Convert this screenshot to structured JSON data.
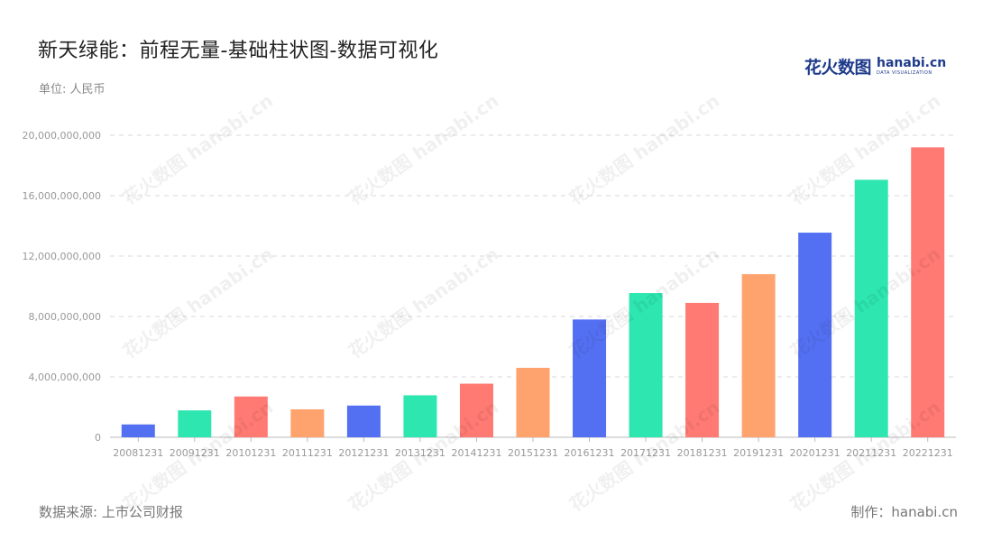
{
  "header": {
    "title": "新天绿能：前程无量-基础柱状图-数据可视化",
    "unit": "单位: 人民币"
  },
  "logo": {
    "cn": "花火数图",
    "en": "hanabi.cn",
    "sub": "DATA VISUALIZATION"
  },
  "footer": {
    "source": "数据来源: 上市公司财报",
    "maker": "制作：hanabi.cn"
  },
  "colors": {
    "palette": [
      "#5470f2",
      "#2de6b0",
      "#ff7a73",
      "#ffa36e"
    ],
    "grid": "#d9d9d9",
    "tick": "#999999"
  },
  "chart_data": {
    "type": "bar",
    "categories": [
      "20081231",
      "20091231",
      "20101231",
      "20111231",
      "20121231",
      "20131231",
      "20141231",
      "20151231",
      "20161231",
      "20171231",
      "20181231",
      "20191231",
      "20201231",
      "20211231",
      "20221231"
    ],
    "values": [
      850000000,
      1780000000,
      2700000000,
      1850000000,
      2100000000,
      2780000000,
      3550000000,
      4600000000,
      7800000000,
      9550000000,
      8900000000,
      10800000000,
      13550000000,
      17050000000,
      19200000000
    ],
    "ylim": [
      0,
      20000000000
    ],
    "yticks": [
      "0",
      "4,000,000,000",
      "8,000,000,000",
      "12,000,000,000",
      "16,000,000,000",
      "20,000,000,000"
    ],
    "ytick_values": [
      0,
      4000000000,
      8000000000,
      12000000000,
      16000000000,
      20000000000
    ],
    "grid": true,
    "legend": "none"
  }
}
